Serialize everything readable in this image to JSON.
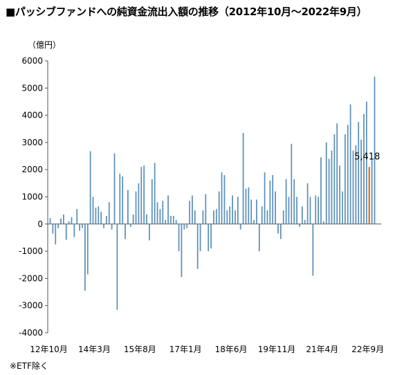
{
  "title": "■パッシブファンドへの純資金流出入額の推移（2012年10月～2022年9月）",
  "unit_label": "（億円）",
  "footnote": "※ETF除く",
  "colors": {
    "bar": "#5b8fb9",
    "highlight": "#e07a2f",
    "axis": "#555555"
  },
  "chart_data": {
    "type": "bar",
    "title": "■パッシブファンドへの純資金流出入額の推移（2012年10月～2022年9月）",
    "ylabel": "（億円）",
    "ylim": [
      -4000,
      6000
    ],
    "yticks": [
      6000,
      5000,
      4000,
      3000,
      2000,
      1000,
      0,
      -1000,
      -2000,
      -3000,
      -4000
    ],
    "ytick_labels": [
      "6000",
      "5000",
      "4000",
      "3000",
      "2000",
      "1000",
      "0",
      "-1000",
      "-2000",
      "-3000",
      "-4000"
    ],
    "xtick_labels": [
      {
        "label": "12年10月",
        "index": 0
      },
      {
        "label": "14年3月",
        "index": 17
      },
      {
        "label": "15年8月",
        "index": 34
      },
      {
        "label": "17年1月",
        "index": 51
      },
      {
        "label": "18年6月",
        "index": 68
      },
      {
        "label": "19年11月",
        "index": 85
      },
      {
        "label": "21年4月",
        "index": 102
      },
      {
        "label": "22年9月",
        "index": 119
      }
    ],
    "highlight_label": "5,418",
    "highlight_index": 119,
    "values": [
      220,
      -350,
      -750,
      -150,
      200,
      350,
      -580,
      100,
      250,
      -480,
      550,
      -250,
      -150,
      -2450,
      -1850,
      2680,
      1000,
      600,
      650,
      450,
      -150,
      300,
      800,
      -200,
      2600,
      -3150,
      1850,
      1750,
      -550,
      1250,
      -100,
      350,
      1200,
      1500,
      2100,
      2150,
      350,
      -600,
      1650,
      2250,
      800,
      550,
      850,
      150,
      1050,
      300,
      300,
      150,
      -1000,
      -1950,
      -200,
      -150,
      850,
      1050,
      500,
      -1650,
      -1000,
      500,
      1100,
      -1000,
      -900,
      500,
      550,
      1200,
      1900,
      1800,
      500,
      650,
      1050,
      500,
      1000,
      -200,
      3350,
      1300,
      1350,
      900,
      150,
      900,
      -1000,
      650,
      1900,
      500,
      1600,
      1800,
      1200,
      -350,
      -550,
      500,
      1650,
      1000,
      2950,
      1650,
      1000,
      -100,
      650,
      150,
      1500,
      1000,
      -1900,
      1050,
      1000,
      2450,
      100,
      3000,
      2400,
      2700,
      3300,
      3700,
      2150,
      1200,
      3300,
      3650,
      4400,
      2700,
      2900,
      3750,
      3100,
      4050,
      4500,
      2100,
      2400,
      5418
    ]
  }
}
